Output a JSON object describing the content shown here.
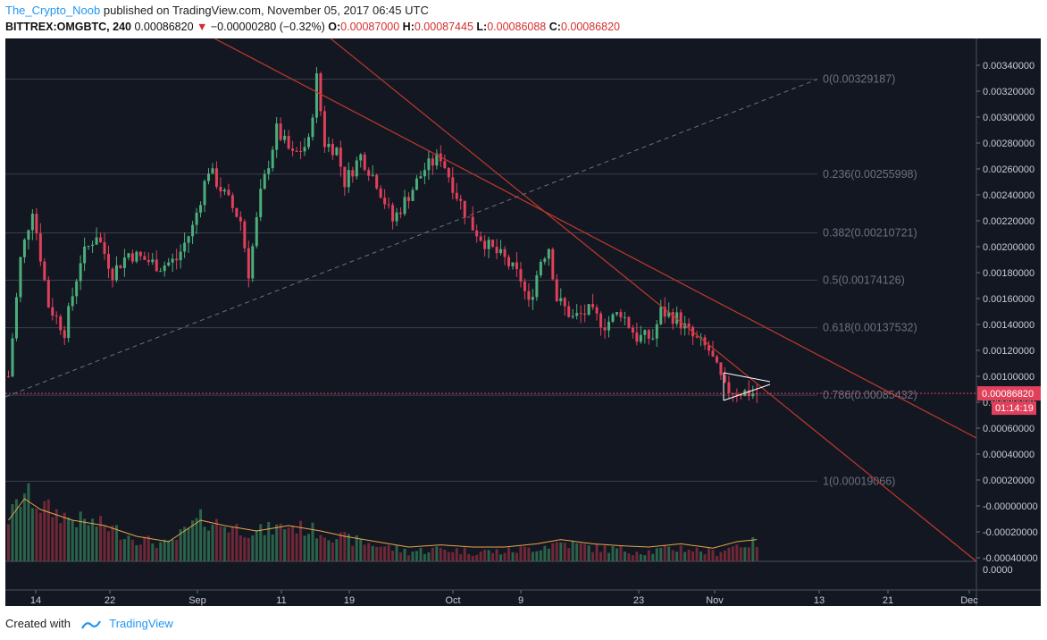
{
  "header": {
    "author": "The_Crypto_Noob",
    "published": "published on TradingView.com, November 05, 2017 06:45 UTC"
  },
  "symbol_line": {
    "symbol": "BITTREX:OMGBTC, 240",
    "last": "0.00086820",
    "change": "−0.00000280 (−0.32%)",
    "o_label": "O:",
    "o": "0.00087000",
    "h_label": "H:",
    "h": "0.00087445",
    "l_label": "L:",
    "l": "0.00086088",
    "c_label": "C:",
    "c": "0.00086820"
  },
  "colors": {
    "background": "#131722",
    "up": "#4caf7a",
    "down": "#e0405a",
    "trendline": "#c0392b",
    "fib_line": "#3a3f4c",
    "fib_text": "#6b7180",
    "price_label_bg": "#e0405a",
    "volume_ma": "#e8a44a"
  },
  "chart_data": {
    "type": "candlestick",
    "price_axis_labels": [
      "0.00340000",
      "0.00320000",
      "0.00300000",
      "0.00280000",
      "0.00260000",
      "0.00240000",
      "0.00220000",
      "0.00200000",
      "0.00180000",
      "0.00160000",
      "0.00140000",
      "0.00120000",
      "0.00100000",
      "0.00080000",
      "0.00060000",
      "0.00040000",
      "0.00020000",
      "-0.00000000",
      "-0.00020000",
      "-0.00040000",
      "0.0000"
    ],
    "price_axis_values": [
      0.0034,
      0.0032,
      0.003,
      0.0028,
      0.0026,
      0.0024,
      0.0022,
      0.002,
      0.0018,
      0.0016,
      0.0014,
      0.0012,
      0.001,
      0.0008,
      0.0006,
      0.0004,
      0.0002,
      0.0,
      -0.0002,
      -0.0004
    ],
    "time_axis_labels": [
      "14",
      "22",
      "Sep",
      "11",
      "19",
      "Oct",
      "9",
      "23",
      "Nov",
      "13",
      "21",
      "Dec"
    ],
    "fib_levels": [
      {
        "label": "0(0.00329187)",
        "value": 0.00329187
      },
      {
        "label": "0.236(0.00255998)",
        "value": 0.00255998
      },
      {
        "label": "0.382(0.00210721)",
        "value": 0.00210721
      },
      {
        "label": "0.5(0.00174126)",
        "value": 0.00174126
      },
      {
        "label": "0.618(0.00137532)",
        "value": 0.00137532
      },
      {
        "label": "0.786(0.00085432)",
        "value": 0.00085432
      },
      {
        "label": "1(0.00019066)",
        "value": 0.00019066
      }
    ],
    "last_price_label": "0.00086820",
    "countdown_label": "01:14:19",
    "last_price": 0.0008682,
    "close_path": [
      [
        0,
        0.001
      ],
      [
        3,
        0.0019
      ],
      [
        6,
        0.0023
      ],
      [
        10,
        0.00155
      ],
      [
        14,
        0.00135
      ],
      [
        18,
        0.0019
      ],
      [
        22,
        0.0021
      ],
      [
        26,
        0.0018
      ],
      [
        30,
        0.00195
      ],
      [
        34,
        0.0019
      ],
      [
        38,
        0.00185
      ],
      [
        42,
        0.0019
      ],
      [
        46,
        0.00215
      ],
      [
        50,
        0.0026
      ],
      [
        54,
        0.0024
      ],
      [
        58,
        0.0022
      ],
      [
        60,
        0.0018
      ],
      [
        63,
        0.0024
      ],
      [
        67,
        0.0029
      ],
      [
        71,
        0.0027
      ],
      [
        75,
        0.0028
      ],
      [
        77,
        0.0033
      ],
      [
        79,
        0.0028
      ],
      [
        82,
        0.00275
      ],
      [
        84,
        0.0025
      ],
      [
        88,
        0.0027
      ],
      [
        92,
        0.0025
      ],
      [
        96,
        0.0022
      ],
      [
        100,
        0.0024
      ],
      [
        104,
        0.0026
      ],
      [
        108,
        0.0027
      ],
      [
        112,
        0.0024
      ],
      [
        116,
        0.00215
      ],
      [
        120,
        0.002
      ],
      [
        124,
        0.0019
      ],
      [
        128,
        0.00175
      ],
      [
        130,
        0.00155
      ],
      [
        133,
        0.0019
      ],
      [
        135,
        0.002
      ],
      [
        137,
        0.0016
      ],
      [
        141,
        0.00145
      ],
      [
        145,
        0.0015
      ],
      [
        149,
        0.0014
      ],
      [
        153,
        0.0015
      ],
      [
        157,
        0.0013
      ],
      [
        161,
        0.0013
      ],
      [
        163,
        0.0015
      ],
      [
        167,
        0.00145
      ],
      [
        171,
        0.0013
      ],
      [
        175,
        0.0012
      ],
      [
        179,
        0.0009
      ],
      [
        183,
        0.00088
      ],
      [
        187,
        0.00087
      ]
    ],
    "volume_ma_path": [
      [
        0,
        0.3
      ],
      [
        4,
        0.5
      ],
      [
        8,
        0.4
      ],
      [
        16,
        0.3
      ],
      [
        24,
        0.25
      ],
      [
        32,
        0.15
      ],
      [
        40,
        0.1
      ],
      [
        48,
        0.3
      ],
      [
        54,
        0.25
      ],
      [
        62,
        0.2
      ],
      [
        70,
        0.25
      ],
      [
        78,
        0.2
      ],
      [
        84,
        0.15
      ],
      [
        92,
        0.1
      ],
      [
        100,
        0.05
      ],
      [
        108,
        0.07
      ],
      [
        116,
        0.05
      ],
      [
        124,
        0.05
      ],
      [
        132,
        0.08
      ],
      [
        138,
        0.12
      ],
      [
        146,
        0.08
      ],
      [
        154,
        0.06
      ],
      [
        160,
        0.05
      ],
      [
        168,
        0.08
      ],
      [
        176,
        0.04
      ],
      [
        182,
        0.1
      ],
      [
        187,
        0.12
      ]
    ]
  }
}
